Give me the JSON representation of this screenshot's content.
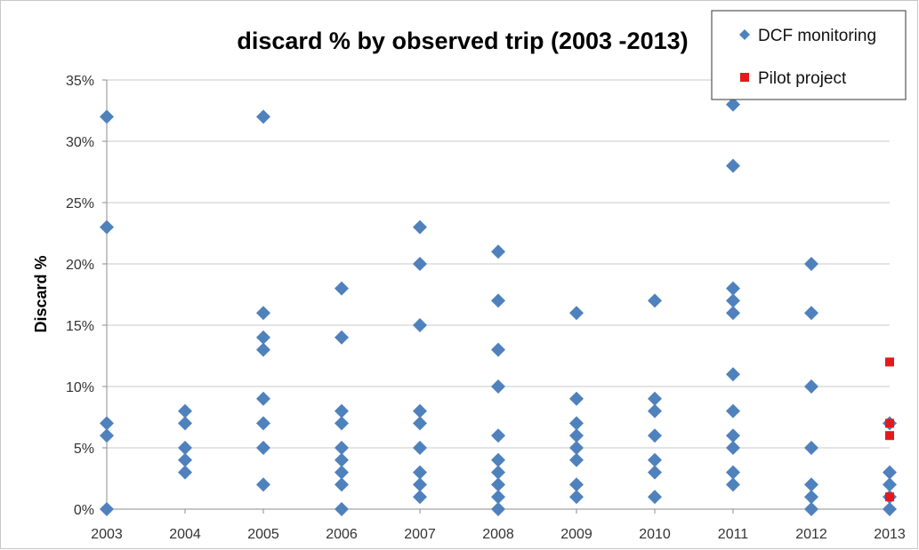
{
  "chart_data": {
    "type": "scatter",
    "title": "discard % by observed trip (2003 -2013)",
    "xlabel": "",
    "ylabel": "Discard %",
    "x_categories": [
      "2003",
      "2004",
      "2005",
      "2006",
      "2007",
      "2008",
      "2009",
      "2010",
      "2011",
      "2012",
      "2013"
    ],
    "y_ticks": [
      "0%",
      "5%",
      "10%",
      "15%",
      "20%",
      "25%",
      "30%",
      "35%"
    ],
    "ylim": [
      0,
      35
    ],
    "grid": "horizontal",
    "legend_placement": "top-right",
    "series": [
      {
        "name": "DCF monitoring",
        "marker": "diamond",
        "color": "#4f81bd",
        "points": [
          {
            "x": "2003",
            "y": 0
          },
          {
            "x": "2003",
            "y": 6
          },
          {
            "x": "2003",
            "y": 7
          },
          {
            "x": "2003",
            "y": 23
          },
          {
            "x": "2003",
            "y": 32
          },
          {
            "x": "2004",
            "y": 3
          },
          {
            "x": "2004",
            "y": 4
          },
          {
            "x": "2004",
            "y": 5
          },
          {
            "x": "2004",
            "y": 7
          },
          {
            "x": "2004",
            "y": 8
          },
          {
            "x": "2005",
            "y": 2
          },
          {
            "x": "2005",
            "y": 5
          },
          {
            "x": "2005",
            "y": 7
          },
          {
            "x": "2005",
            "y": 9
          },
          {
            "x": "2005",
            "y": 13
          },
          {
            "x": "2005",
            "y": 14
          },
          {
            "x": "2005",
            "y": 16
          },
          {
            "x": "2005",
            "y": 32
          },
          {
            "x": "2006",
            "y": 0
          },
          {
            "x": "2006",
            "y": 2
          },
          {
            "x": "2006",
            "y": 3
          },
          {
            "x": "2006",
            "y": 4
          },
          {
            "x": "2006",
            "y": 5
          },
          {
            "x": "2006",
            "y": 7
          },
          {
            "x": "2006",
            "y": 8
          },
          {
            "x": "2006",
            "y": 14
          },
          {
            "x": "2006",
            "y": 18
          },
          {
            "x": "2007",
            "y": 1
          },
          {
            "x": "2007",
            "y": 2
          },
          {
            "x": "2007",
            "y": 3
          },
          {
            "x": "2007",
            "y": 5
          },
          {
            "x": "2007",
            "y": 7
          },
          {
            "x": "2007",
            "y": 8
          },
          {
            "x": "2007",
            "y": 15
          },
          {
            "x": "2007",
            "y": 20
          },
          {
            "x": "2007",
            "y": 23
          },
          {
            "x": "2008",
            "y": 0
          },
          {
            "x": "2008",
            "y": 1
          },
          {
            "x": "2008",
            "y": 2
          },
          {
            "x": "2008",
            "y": 3
          },
          {
            "x": "2008",
            "y": 4
          },
          {
            "x": "2008",
            "y": 6
          },
          {
            "x": "2008",
            "y": 10
          },
          {
            "x": "2008",
            "y": 13
          },
          {
            "x": "2008",
            "y": 17
          },
          {
            "x": "2008",
            "y": 21
          },
          {
            "x": "2009",
            "y": 1
          },
          {
            "x": "2009",
            "y": 2
          },
          {
            "x": "2009",
            "y": 4
          },
          {
            "x": "2009",
            "y": 5
          },
          {
            "x": "2009",
            "y": 6
          },
          {
            "x": "2009",
            "y": 7
          },
          {
            "x": "2009",
            "y": 9
          },
          {
            "x": "2009",
            "y": 16
          },
          {
            "x": "2010",
            "y": 1
          },
          {
            "x": "2010",
            "y": 3
          },
          {
            "x": "2010",
            "y": 4
          },
          {
            "x": "2010",
            "y": 6
          },
          {
            "x": "2010",
            "y": 8
          },
          {
            "x": "2010",
            "y": 9
          },
          {
            "x": "2010",
            "y": 17
          },
          {
            "x": "2011",
            "y": 2
          },
          {
            "x": "2011",
            "y": 3
          },
          {
            "x": "2011",
            "y": 5
          },
          {
            "x": "2011",
            "y": 6
          },
          {
            "x": "2011",
            "y": 8
          },
          {
            "x": "2011",
            "y": 11
          },
          {
            "x": "2011",
            "y": 16
          },
          {
            "x": "2011",
            "y": 17
          },
          {
            "x": "2011",
            "y": 18
          },
          {
            "x": "2011",
            "y": 28
          },
          {
            "x": "2011",
            "y": 33
          },
          {
            "x": "2012",
            "y": 0
          },
          {
            "x": "2012",
            "y": 1
          },
          {
            "x": "2012",
            "y": 2
          },
          {
            "x": "2012",
            "y": 5
          },
          {
            "x": "2012",
            "y": 10
          },
          {
            "x": "2012",
            "y": 16
          },
          {
            "x": "2012",
            "y": 20
          },
          {
            "x": "2013",
            "y": 0
          },
          {
            "x": "2013",
            "y": 1
          },
          {
            "x": "2013",
            "y": 2
          },
          {
            "x": "2013",
            "y": 3
          },
          {
            "x": "2013",
            "y": 7
          }
        ]
      },
      {
        "name": "Pilot project",
        "marker": "square",
        "color": "#e31a1c",
        "points": [
          {
            "x": "2013",
            "y": 12
          },
          {
            "x": "2013",
            "y": 7
          },
          {
            "x": "2013",
            "y": 6
          },
          {
            "x": "2013",
            "y": 1
          }
        ]
      }
    ]
  }
}
